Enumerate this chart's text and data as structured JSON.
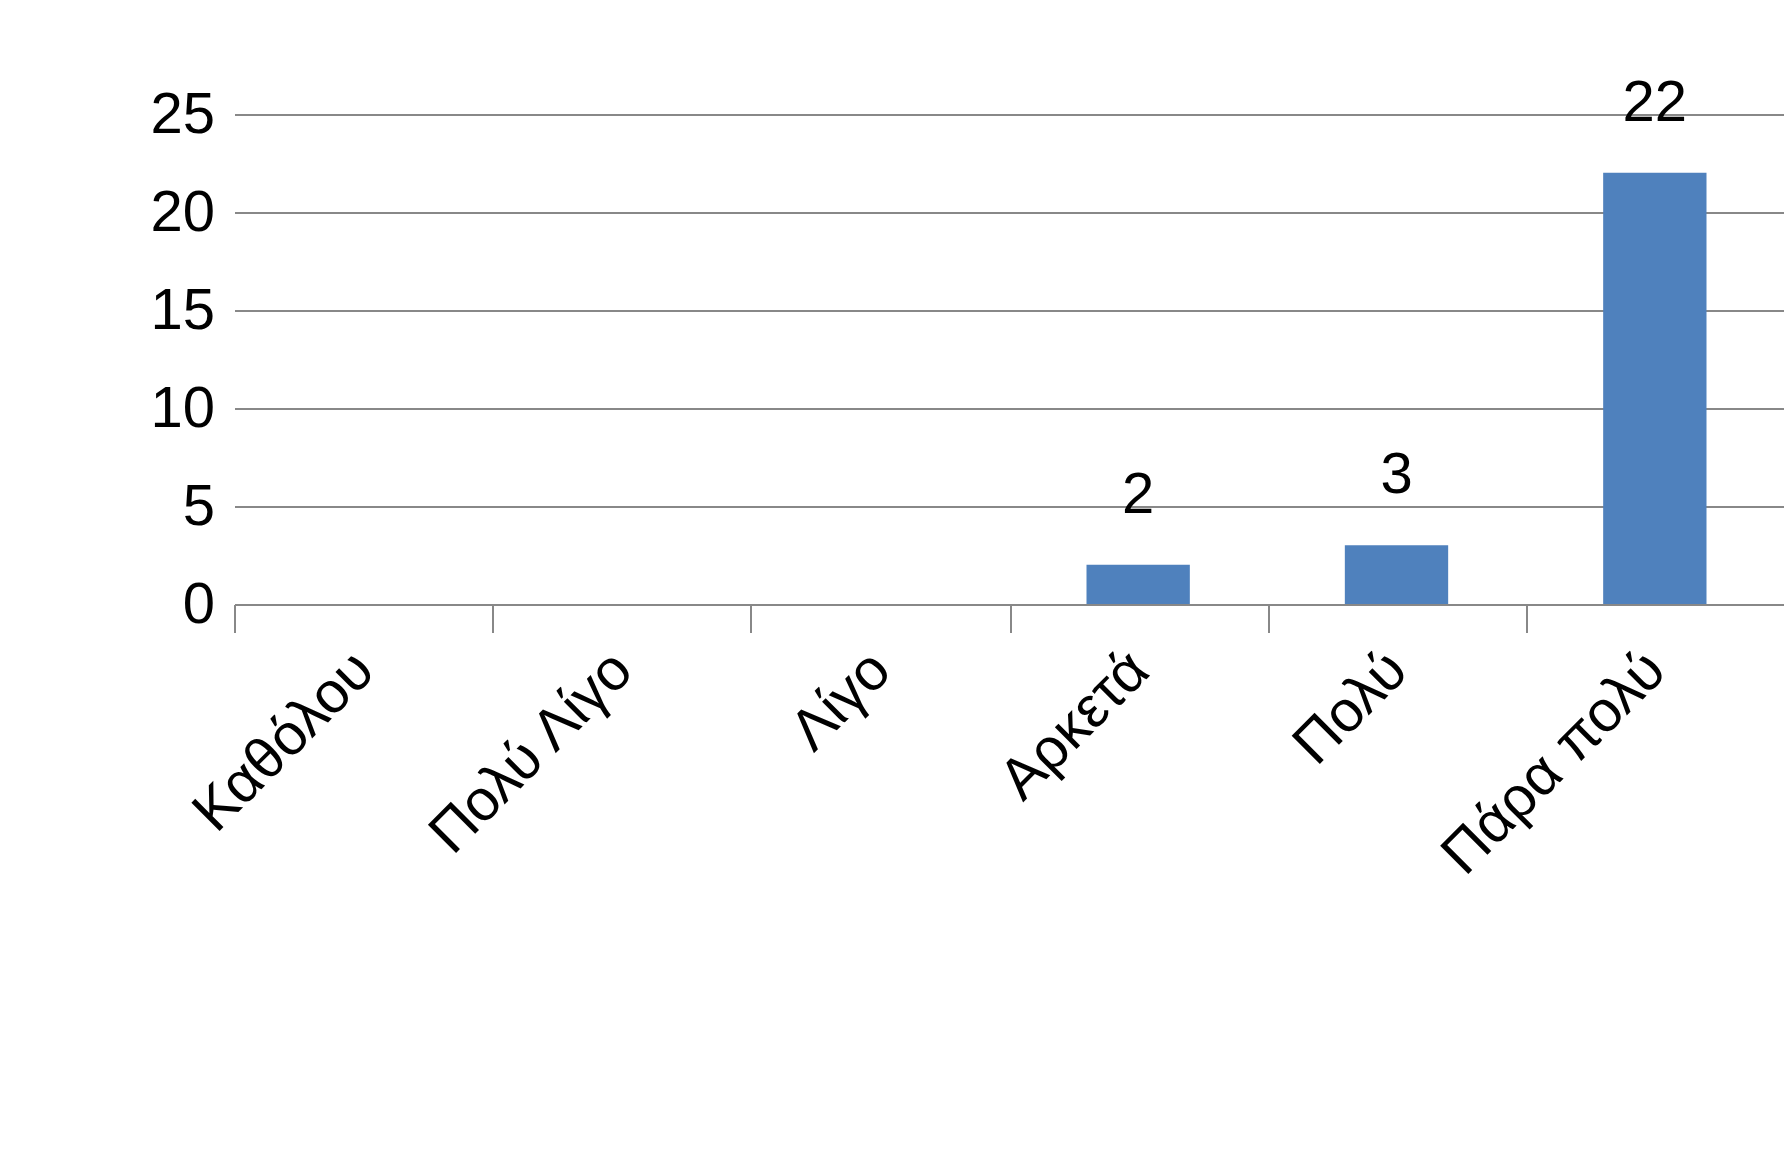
{
  "chart_data": {
    "type": "bar",
    "categories": [
      "Καθόλου",
      "Πολύ Λίγο",
      "Λίγο",
      "Αρκετά",
      "Πολύ",
      "Πάρα πολύ"
    ],
    "values": [
      0,
      0,
      0,
      2,
      3,
      22
    ],
    "value_labels": [
      null,
      null,
      null,
      "2",
      "3",
      "22"
    ],
    "color": "#4f81bd",
    "ylim": [
      0,
      25
    ],
    "yticks": [
      0,
      5,
      10,
      15,
      20,
      25
    ],
    "grid": "y"
  }
}
